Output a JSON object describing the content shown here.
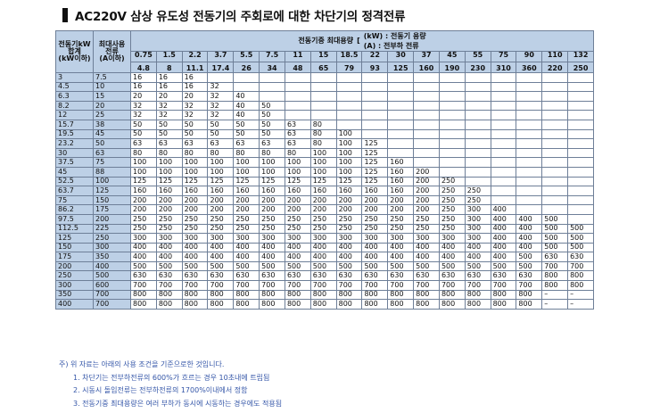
{
  "title": "AC220V 삼상 유도성 전동기의 주회로에 대한 차단기의 정격전류",
  "table": {
    "col0_header": "전동기kW\n합계\n(kW이하)",
    "col1_header": "최대사용\n전류\n(A이하)",
    "capacity_header": "전동기중 최대용량",
    "legend_kw": "(kW) : 전동기 용량",
    "legend_a": "(A) : 전부하 전류",
    "motor_sizes": [
      {
        "kw": "0.75",
        "a": "4.8"
      },
      {
        "kw": "1.5",
        "a": "8"
      },
      {
        "kw": "2.2",
        "a": "11.1"
      },
      {
        "kw": "3.7",
        "a": "17.4"
      },
      {
        "kw": "5.5",
        "a": "26"
      },
      {
        "kw": "7.5",
        "a": "34"
      },
      {
        "kw": "11",
        "a": "48"
      },
      {
        "kw": "15",
        "a": "65"
      },
      {
        "kw": "18.5",
        "a": "79"
      },
      {
        "kw": "22",
        "a": "93"
      },
      {
        "kw": "30",
        "a": "125"
      },
      {
        "kw": "37",
        "a": "160"
      },
      {
        "kw": "45",
        "a": "190"
      },
      {
        "kw": "55",
        "a": "230"
      },
      {
        "kw": "75",
        "a": "310"
      },
      {
        "kw": "90",
        "a": "360"
      },
      {
        "kw": "110",
        "a": "220"
      },
      {
        "kw": "132",
        "a": "250"
      }
    ],
    "rows": [
      [
        "3",
        "7.5",
        "16",
        "16",
        "16",
        "",
        "",
        "",
        "",
        "",
        "",
        "",
        "",
        "",
        "",
        "",
        "",
        "",
        "",
        ""
      ],
      [
        "4.5",
        "10",
        "16",
        "16",
        "16",
        "32",
        "",
        "",
        "",
        "",
        "",
        "",
        "",
        "",
        "",
        "",
        "",
        "",
        "",
        ""
      ],
      [
        "6.3",
        "15",
        "20",
        "20",
        "20",
        "32",
        "40",
        "",
        "",
        "",
        "",
        "",
        "",
        "",
        "",
        "",
        "",
        "",
        "",
        ""
      ],
      [
        "8.2",
        "20",
        "32",
        "32",
        "32",
        "32",
        "40",
        "50",
        "",
        "",
        "",
        "",
        "",
        "",
        "",
        "",
        "",
        "",
        "",
        ""
      ],
      [
        "12",
        "25",
        "32",
        "32",
        "32",
        "32",
        "40",
        "50",
        "",
        "",
        "",
        "",
        "",
        "",
        "",
        "",
        "",
        "",
        "",
        ""
      ],
      [
        "15.7",
        "38",
        "50",
        "50",
        "50",
        "50",
        "50",
        "50",
        "63",
        "80",
        "",
        "",
        "",
        "",
        "",
        "",
        "",
        "",
        "",
        ""
      ],
      [
        "19.5",
        "45",
        "50",
        "50",
        "50",
        "50",
        "50",
        "50",
        "63",
        "80",
        "100",
        "",
        "",
        "",
        "",
        "",
        "",
        "",
        "",
        ""
      ],
      [
        "23.2",
        "50",
        "63",
        "63",
        "63",
        "63",
        "63",
        "63",
        "63",
        "80",
        "100",
        "125",
        "",
        "",
        "",
        "",
        "",
        "",
        "",
        ""
      ],
      [
        "30",
        "63",
        "80",
        "80",
        "80",
        "80",
        "80",
        "80",
        "80",
        "100",
        "100",
        "125",
        "",
        "",
        "",
        "",
        "",
        "",
        "",
        ""
      ],
      [
        "37.5",
        "75",
        "100",
        "100",
        "100",
        "100",
        "100",
        "100",
        "100",
        "100",
        "100",
        "125",
        "160",
        "",
        "",
        "",
        "",
        "",
        "",
        ""
      ],
      [
        "45",
        "88",
        "100",
        "100",
        "100",
        "100",
        "100",
        "100",
        "100",
        "100",
        "100",
        "125",
        "160",
        "200",
        "",
        "",
        "",
        "",
        "",
        ""
      ],
      [
        "52.5",
        "100",
        "125",
        "125",
        "125",
        "125",
        "125",
        "125",
        "125",
        "125",
        "125",
        "125",
        "160",
        "200",
        "250",
        "",
        "",
        "",
        "",
        ""
      ],
      [
        "63.7",
        "125",
        "160",
        "160",
        "160",
        "160",
        "160",
        "160",
        "160",
        "160",
        "160",
        "160",
        "160",
        "200",
        "250",
        "250",
        "",
        "",
        "",
        ""
      ],
      [
        "75",
        "150",
        "200",
        "200",
        "200",
        "200",
        "200",
        "200",
        "200",
        "200",
        "200",
        "200",
        "200",
        "200",
        "250",
        "250",
        "",
        "",
        "",
        ""
      ],
      [
        "86.2",
        "175",
        "200",
        "200",
        "200",
        "200",
        "200",
        "200",
        "200",
        "200",
        "200",
        "200",
        "200",
        "200",
        "250",
        "300",
        "400",
        "",
        "",
        ""
      ],
      [
        "97.5",
        "200",
        "250",
        "250",
        "250",
        "250",
        "250",
        "250",
        "250",
        "250",
        "250",
        "250",
        "250",
        "250",
        "250",
        "300",
        "400",
        "400",
        "500",
        ""
      ],
      [
        "112.5",
        "225",
        "250",
        "250",
        "250",
        "250",
        "250",
        "250",
        "250",
        "250",
        "250",
        "250",
        "250",
        "250",
        "250",
        "300",
        "400",
        "400",
        "500",
        "500"
      ],
      [
        "125",
        "250",
        "300",
        "300",
        "300",
        "300",
        "300",
        "300",
        "300",
        "300",
        "300",
        "300",
        "300",
        "300",
        "300",
        "300",
        "400",
        "400",
        "500",
        "500"
      ],
      [
        "150",
        "300",
        "400",
        "400",
        "400",
        "400",
        "400",
        "400",
        "400",
        "400",
        "400",
        "400",
        "400",
        "400",
        "400",
        "400",
        "400",
        "400",
        "500",
        "500"
      ],
      [
        "175",
        "350",
        "400",
        "400",
        "400",
        "400",
        "400",
        "400",
        "400",
        "400",
        "400",
        "400",
        "400",
        "400",
        "400",
        "400",
        "400",
        "500",
        "630",
        "630"
      ],
      [
        "200",
        "400",
        "500",
        "500",
        "500",
        "500",
        "500",
        "500",
        "500",
        "500",
        "500",
        "500",
        "500",
        "500",
        "500",
        "500",
        "500",
        "500",
        "700",
        "700"
      ],
      [
        "250",
        "500",
        "630",
        "630",
        "630",
        "630",
        "630",
        "630",
        "630",
        "630",
        "630",
        "630",
        "630",
        "630",
        "630",
        "630",
        "630",
        "630",
        "800",
        "800"
      ],
      [
        "300",
        "600",
        "700",
        "700",
        "700",
        "700",
        "700",
        "700",
        "700",
        "700",
        "700",
        "700",
        "700",
        "700",
        "700",
        "700",
        "700",
        "700",
        "800",
        "800"
      ],
      [
        "350",
        "700",
        "800",
        "800",
        "800",
        "800",
        "800",
        "800",
        "800",
        "800",
        "800",
        "800",
        "800",
        "800",
        "800",
        "800",
        "800",
        "800",
        "–",
        "–"
      ],
      [
        "400",
        "700",
        "800",
        "800",
        "800",
        "800",
        "800",
        "800",
        "800",
        "800",
        "800",
        "800",
        "800",
        "800",
        "800",
        "800",
        "800",
        "800",
        "–",
        "–"
      ]
    ]
  },
  "notes": {
    "head": "주) 위 자료는 아래의 사용 조건을 기준으로한 것입니다.",
    "items": [
      "1. 차단기는 전부하전류의 600%가 흐르는 경우 10초내에 트립됨",
      "2. 시동시 돌입전류는 전부하전류의 1700%이내에서 정함",
      "3. 전동기중 최대용량은 여러 부하가 동시에 시동하는 경우에도 적용됨"
    ]
  }
}
